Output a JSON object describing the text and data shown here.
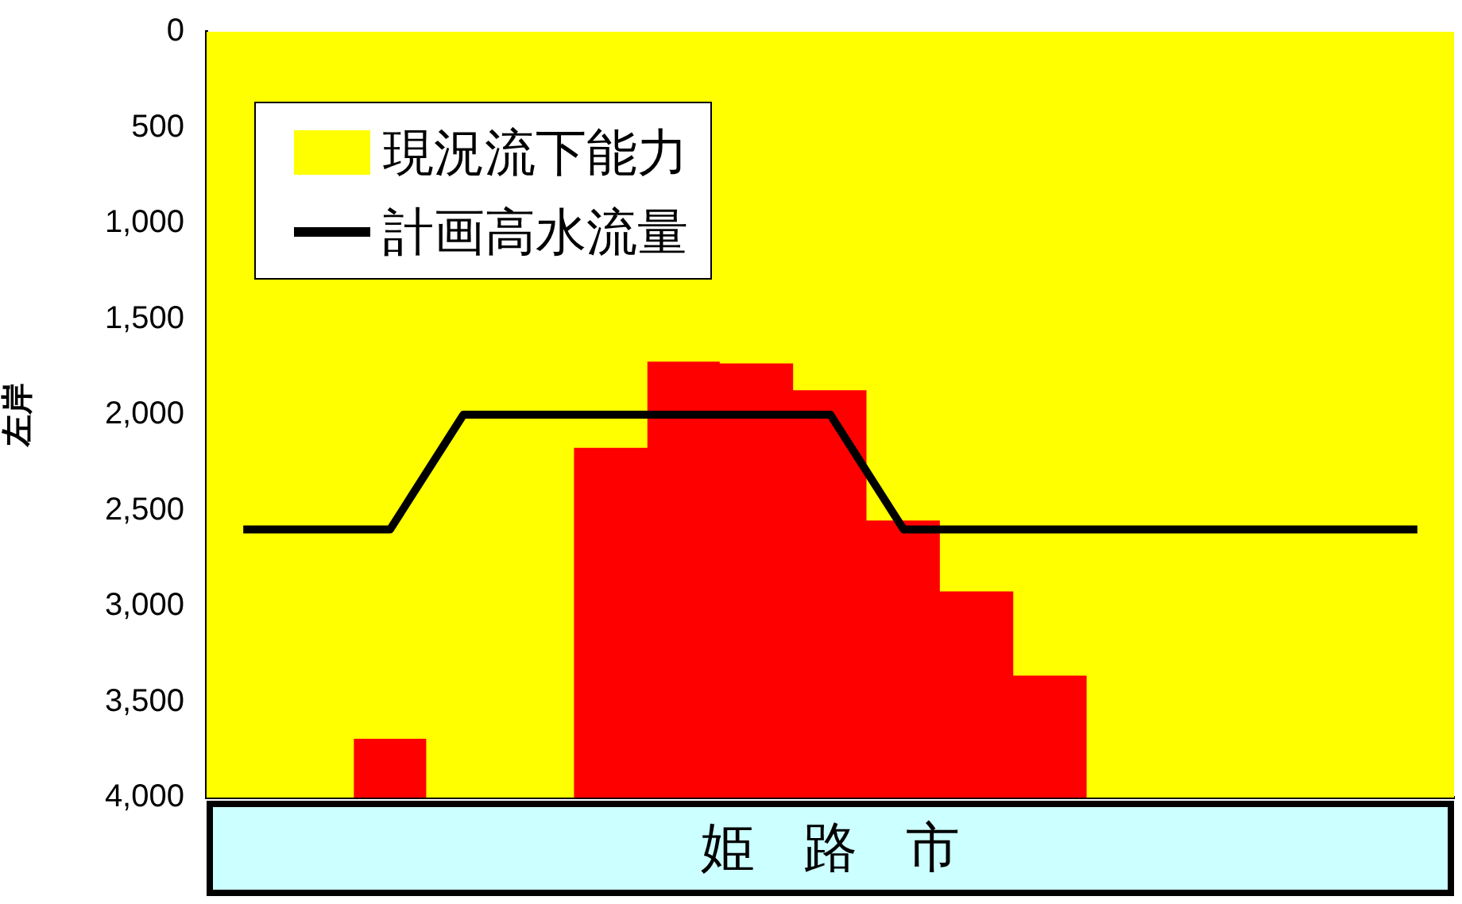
{
  "chart_data": {
    "type": "bar",
    "stacked": true,
    "ylabel": "左岸",
    "categories": [
      null,
      null,
      null,
      null,
      null,
      null,
      null,
      null,
      null,
      null,
      null,
      null,
      null,
      null,
      null,
      null,
      null
    ],
    "series": [
      {
        "name": "現況流下能力",
        "color": "#ffff00",
        "values": [
          4000,
          4000,
          3690,
          4000,
          4000,
          2170,
          1720,
          1730,
          1870,
          2550,
          2920,
          3360,
          4000,
          4000,
          4000,
          4000,
          4000
        ]
      },
      {
        "color": "#ff0000",
        "values": [
          0,
          0,
          310,
          0,
          0,
          1830,
          2280,
          2270,
          2130,
          1450,
          1080,
          640,
          0,
          0,
          0,
          0,
          0
        ]
      },
      {
        "name": "計画高水流量",
        "type": "line",
        "color": "#000000",
        "values": [
          2600,
          2600,
          2600,
          2000,
          2000,
          2000,
          2000,
          2000,
          2000,
          2600,
          2600,
          2600,
          2600,
          2600,
          2600,
          2600,
          2600
        ]
      }
    ],
    "ylim": [
      4000,
      0
    ],
    "yticks": [
      0,
      500,
      {
        "value": 1000,
        "label": "1,000"
      },
      {
        "value": 1500,
        "label": "1,500"
      },
      {
        "value": 2000,
        "label": "2,000"
      },
      {
        "value": 2500,
        "label": "2,500"
      },
      {
        "value": 3000,
        "label": "3,000"
      },
      {
        "value": 3500,
        "label": "3,500"
      },
      {
        "value": 4000,
        "label": "4,000"
      }
    ],
    "tick_labels": "y",
    "grid": false,
    "legend": "top left",
    "marker": "none",
    "line_style": "solid",
    "annotations": [
      "姫路市"
    ]
  }
}
